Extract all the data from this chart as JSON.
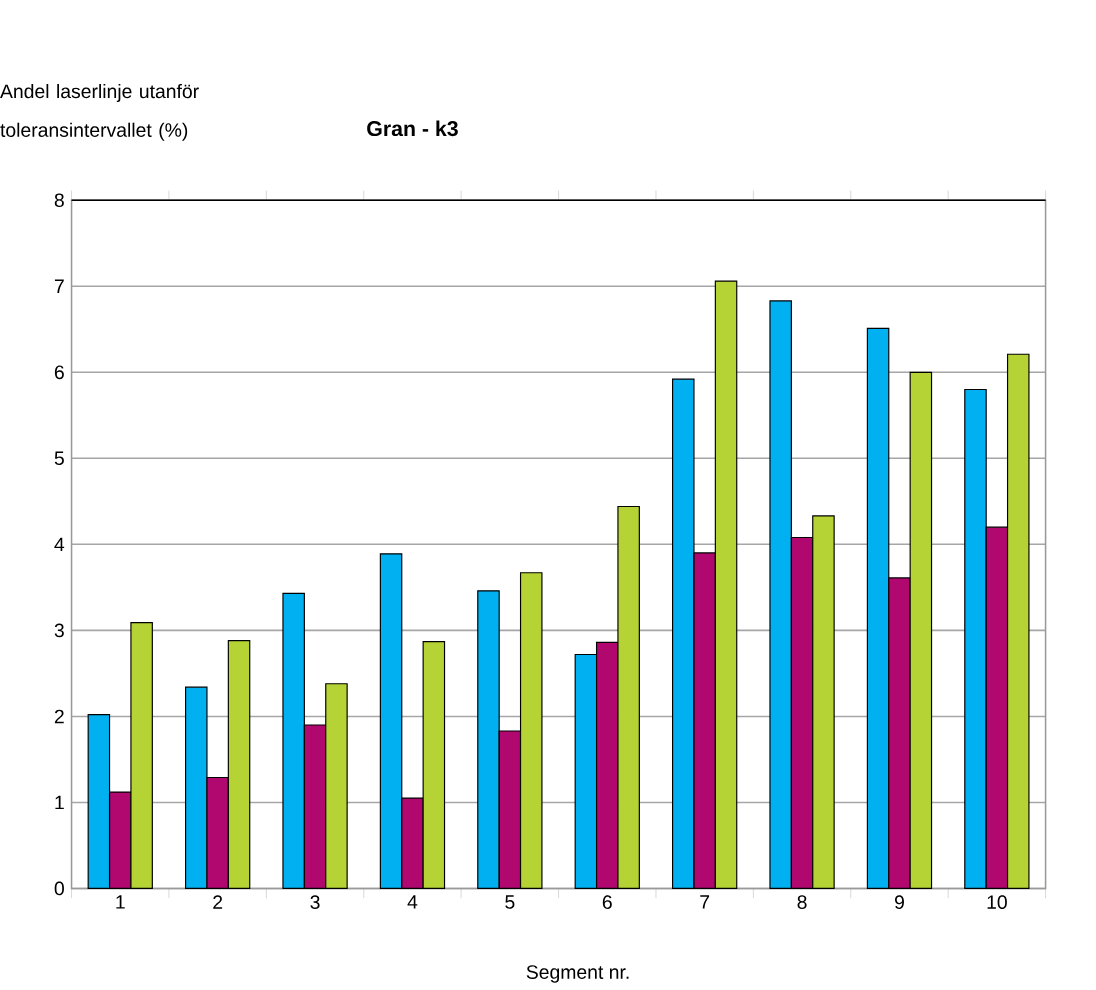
{
  "chart_data": {
    "type": "bar",
    "title": "Gran - k3",
    "xlabel": "Segment nr.",
    "ylabel": "Andel laserlinje utanför toleransintervallet (%)",
    "categories": [
      "1",
      "2",
      "3",
      "4",
      "5",
      "6",
      "7",
      "8",
      "9",
      "10"
    ],
    "series": [
      {
        "color": "#00b0f0",
        "values": [
          2.02,
          2.34,
          3.43,
          3.89,
          3.46,
          2.72,
          5.92,
          6.83,
          6.51,
          5.8
        ]
      },
      {
        "color": "#b0086e",
        "values": [
          1.12,
          1.29,
          1.9,
          1.05,
          1.83,
          2.86,
          3.9,
          4.08,
          3.61,
          4.2
        ]
      },
      {
        "color": "#b5d334",
        "values": [
          3.09,
          2.88,
          2.38,
          2.87,
          3.67,
          4.44,
          7.06,
          4.33,
          6.0,
          6.21
        ]
      }
    ],
    "ylim": [
      0,
      8
    ],
    "yticks": [
      0,
      1,
      2,
      3,
      4,
      5,
      6,
      7,
      8
    ],
    "grid": "y"
  }
}
